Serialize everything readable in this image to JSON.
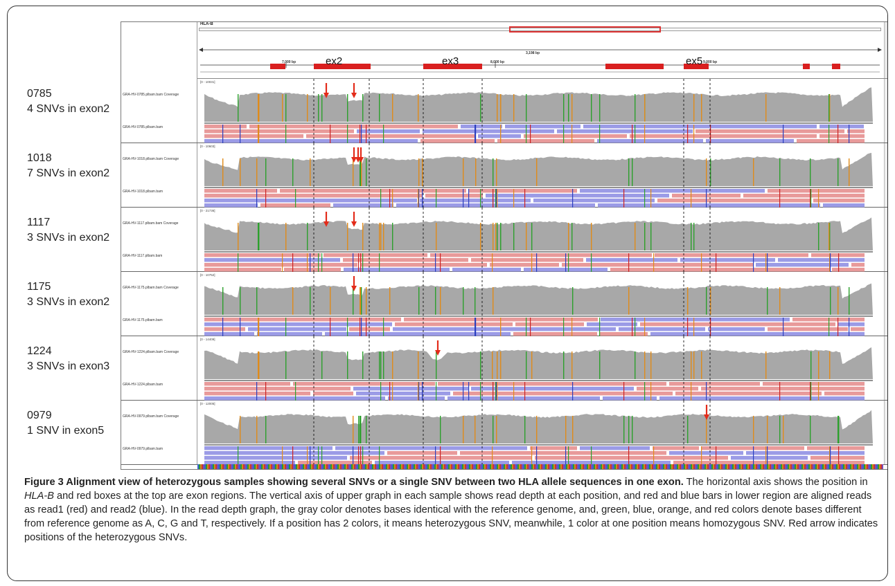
{
  "gene": {
    "name": "HLA-B",
    "span_label": "3,198 bp",
    "ticks": [
      "7,000 bp",
      "8,000 bp",
      "9,000 bp"
    ],
    "exons": [
      "ex2",
      "ex3",
      "ex5"
    ]
  },
  "samples": [
    {
      "id": "0785",
      "note": "4 SNVs in exon2",
      "range": "[0 - 10031]",
      "coverage_track": "GRA-HV-0785.plbam.bam Coverage",
      "bam_track": "GRA-HV-0785.plbam.bam"
    },
    {
      "id": "1018",
      "note": "7 SNVs in exon2",
      "range": "[0 - 10603]",
      "coverage_track": "GRA-HV-1018.plbam.bam Coverage",
      "bam_track": "GRA-HV-1018.plbam.bam"
    },
    {
      "id": "1117",
      "note": "3 SNVs in exon2",
      "range": "[0 - 21736]",
      "coverage_track": "GRA-HV-1117.plbam.bam Coverage",
      "bam_track": "GRA-HV-1117.plbam.bam"
    },
    {
      "id": "1175",
      "note": "3 SNVs in exon2",
      "range": "[0 - 10752]",
      "coverage_track": "GRA-HV-1175.plbam.bam Coverage",
      "bam_track": "GRA-HV-1175.plbam.bam"
    },
    {
      "id": "1224",
      "note": "3 SNVs in exon3",
      "range": "[0 - 14409]",
      "coverage_track": "GRA-HV-1224.plbam.bam Coverage",
      "bam_track": "GRA-HV-1224.plbam.bam"
    },
    {
      "id": "0979",
      "note": "1 SNV in exon5",
      "range": "[0 - 12005]",
      "coverage_track": "GRA-HV-0979.plbam.bam Coverage",
      "bam_track": "GRA-HV-0979.plbam.bam"
    }
  ],
  "colors": {
    "read1": "#e89a9a",
    "read2": "#9b9be6",
    "coverage": "#a8a8a8",
    "exon": "#d91f1f",
    "arrow": "#e32b1a",
    "base_A": "#2ca02c",
    "base_C": "#2a3fbf",
    "base_G": "#e08b1a",
    "base_T": "#cc2222"
  },
  "caption": {
    "title": "Figure 3 Alignment view of heterozygous samples showing several SNVs or a single SNV between two HLA allele sequences in one exon.",
    "s1_pre": " The horizontal axis shows the position in ",
    "s1_gene": "HLA-B",
    "s1_post": " and red boxes at the top are exon regions. The vertical axis of upper graph in each sample shows read depth at each position, and red and blue bars in lower region are aligned reads as read1 (red) and read2 (blue). In the read depth graph, the gray color denotes bases identical with the reference genome, and, green, blue, orange, and red colors denote bases different from reference genome as A, C, G and T, respectively. If a position has 2 colors, it means heterozygous SNV, meanwhile, 1 color at one position means homozygous SNV. Red arrow indicates positions of the heterozygous SNVs."
  }
}
